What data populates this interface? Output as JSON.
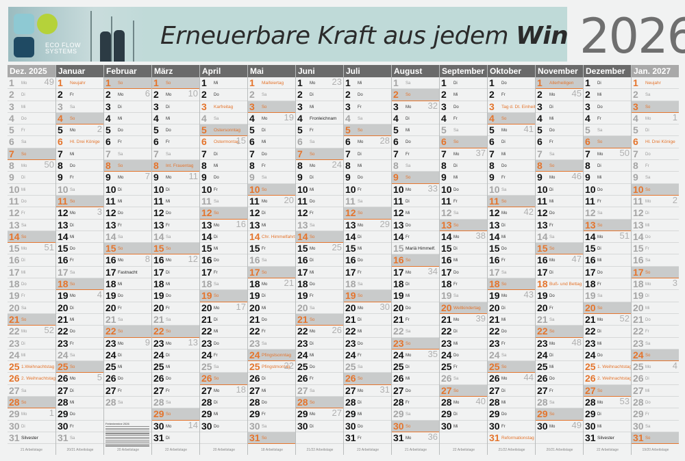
{
  "banner": {
    "title_normal": "Erneuerbare Kraft aus jedem",
    "title_bold": "Windstoß",
    "logo_line1": "ECO FLOW",
    "logo_line2": "SYSTEMS",
    "logo_colors": [
      "#8ec9d3",
      "#b5d23a",
      "#1f4a63"
    ]
  },
  "year": "2026",
  "colors": {
    "holiday": "#e4742c",
    "sunday_bg": "#c9cbcb",
    "header_bg": "#6a6a6a",
    "header_adjacent_bg": "#a9a9a9",
    "banner_bg": "#bfdad8"
  },
  "mini_table_title": "Ferientermine 2026",
  "months": [
    {
      "name": "Dez. 2025",
      "adjacent": true,
      "days": 31,
      "first_wd": 0,
      "work": "21 Arbeitstage",
      "holidays": {
        "25": "1.Weihnachtstag",
        "26": "2. Weihnachtstag",
        "31": "Silvester"
      },
      "kw": {
        "1": "49",
        "8": "50",
        "15": "51",
        "22": "52",
        "29": "1"
      }
    },
    {
      "name": "Januar",
      "adjacent": false,
      "days": 31,
      "first_wd": 3,
      "work": "20/21 Arbeitstage",
      "holidays": {
        "1": "Neujahr",
        "6": "Hl. Drei Könige"
      },
      "kw": {
        "5": "2",
        "12": "3",
        "19": "4",
        "26": "5"
      }
    },
    {
      "name": "Februar",
      "adjacent": false,
      "days": 28,
      "first_wd": 6,
      "work": "20 Arbeitstage",
      "holidays": {
        "17": "Fastnacht"
      },
      "kw": {
        "2": "6",
        "9": "7",
        "16": "8",
        "23": "9"
      }
    },
    {
      "name": "März",
      "adjacent": false,
      "days": 31,
      "first_wd": 6,
      "work": "22 Arbeitstage",
      "holidays": {
        "8": "Int. Frauentag"
      },
      "kw": {
        "2": "10",
        "9": "11",
        "16": "12",
        "23": "13",
        "30": "14"
      }
    },
    {
      "name": "April",
      "adjacent": false,
      "days": 30,
      "first_wd": 2,
      "work": "20 Arbeitstage",
      "holidays": {
        "3": "Karfreitag",
        "5": "Ostersonntag",
        "6": "Ostermontag"
      },
      "kw": {
        "6": "15",
        "13": "16",
        "20": "17",
        "27": "18"
      }
    },
    {
      "name": "Mai",
      "adjacent": false,
      "days": 31,
      "first_wd": 4,
      "work": "18 Arbeitstage",
      "holidays": {
        "1": "Maifeiertag",
        "14": "Chr. Himmelfahrt",
        "24": "Pfingstsonntag",
        "25": "Pfingstmontag"
      },
      "kw": {
        "4": "19",
        "11": "20",
        "18": "21",
        "25": "22"
      }
    },
    {
      "name": "Juni",
      "adjacent": false,
      "days": 30,
      "first_wd": 0,
      "work": "21/22 Arbeitstage",
      "holidays": {
        "4": "Fronleichnam"
      },
      "kw": {
        "1": "23",
        "8": "24",
        "15": "25",
        "22": "26",
        "29": "27"
      }
    },
    {
      "name": "Juli",
      "adjacent": false,
      "days": 31,
      "first_wd": 2,
      "work": "23 Arbeitstage",
      "holidays": {},
      "kw": {
        "6": "28",
        "13": "29",
        "20": "30",
        "27": "31"
      }
    },
    {
      "name": "August",
      "adjacent": false,
      "days": 31,
      "first_wd": 5,
      "work": "21 Arbeitstage",
      "holidays": {
        "15": "Mariä Himmelf."
      },
      "kw": {
        "3": "32",
        "10": "33",
        "17": "34",
        "24": "35",
        "31": "36"
      }
    },
    {
      "name": "September",
      "adjacent": false,
      "days": 30,
      "first_wd": 1,
      "work": "22 Arbeitstage",
      "holidays": {
        "20": "Weltkindertag"
      },
      "kw": {
        "7": "37",
        "14": "38",
        "21": "39",
        "28": "40"
      }
    },
    {
      "name": "Oktober",
      "adjacent": false,
      "days": 31,
      "first_wd": 3,
      "work": "21/22 Arbeitstage",
      "holidays": {
        "3": "Tag d. Dt. Einheit",
        "31": "Reformationstag"
      },
      "kw": {
        "5": "41",
        "12": "42",
        "19": "43",
        "26": "44"
      }
    },
    {
      "name": "November",
      "adjacent": false,
      "days": 30,
      "first_wd": 6,
      "work": "20/21 Arbeitstage",
      "holidays": {
        "1": "Allerheiligen",
        "18": "Buß- und Bettag"
      },
      "kw": {
        "2": "45",
        "9": "46",
        "16": "47",
        "23": "48",
        "30": "49"
      }
    },
    {
      "name": "Dezember",
      "adjacent": false,
      "days": 31,
      "first_wd": 1,
      "work": "22 Arbeitstage",
      "holidays": {
        "25": "1. Weihnachtstag",
        "26": "2. Weihnachtstag",
        "31": "Silvester"
      },
      "kw": {
        "7": "50",
        "14": "51",
        "21": "52",
        "28": "53"
      }
    },
    {
      "name": "Jan. 2027",
      "adjacent": true,
      "days": 31,
      "first_wd": 4,
      "work": "19/20 Arbeitstage",
      "holidays": {
        "1": "Neujahr",
        "6": "Hl. Drei Könige"
      },
      "kw": {
        "4": "1",
        "11": "2",
        "18": "3",
        "25": "4"
      }
    }
  ],
  "weekdays": [
    "Mo",
    "Di",
    "Mi",
    "Do",
    "Fr",
    "Sa",
    "So"
  ],
  "red_holidays": {
    "0": [
      "25",
      "26"
    ],
    "1": [
      "1",
      "6"
    ],
    "3": [
      "8"
    ],
    "4": [
      "3",
      "5",
      "6"
    ],
    "5": [
      "1",
      "14",
      "24",
      "25"
    ],
    "9": [
      "20"
    ],
    "10": [
      "3",
      "31"
    ],
    "11": [
      "1",
      "18"
    ],
    "12": [
      "25",
      "26"
    ],
    "13": [
      "1",
      "6"
    ]
  }
}
